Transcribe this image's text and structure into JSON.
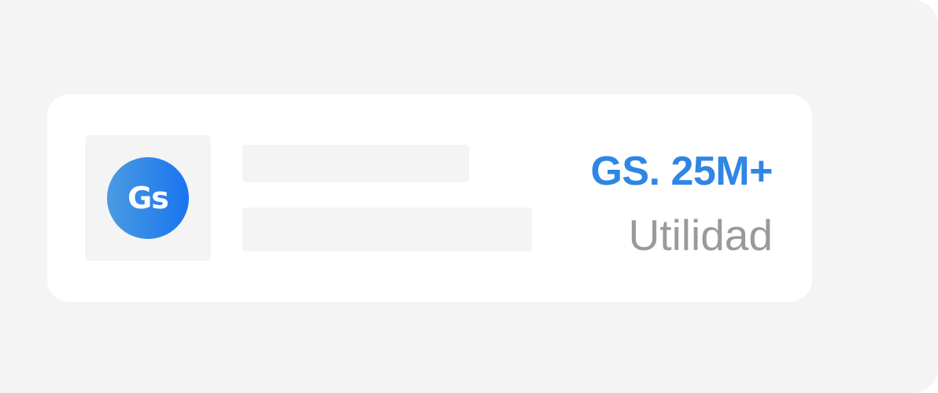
{
  "card": {
    "logo": {
      "text": "Gs",
      "icon": "gs-logo-icon",
      "gradient": [
        "#4a9be0",
        "#1a74f0"
      ]
    },
    "stat": {
      "value": "GS. 25M+",
      "label": "Utilidad"
    }
  },
  "colors": {
    "accent": "#2f86e4",
    "muted_text": "#9a9a9a",
    "panel_bg": "#f4f4f4",
    "card_bg": "#ffffff"
  }
}
